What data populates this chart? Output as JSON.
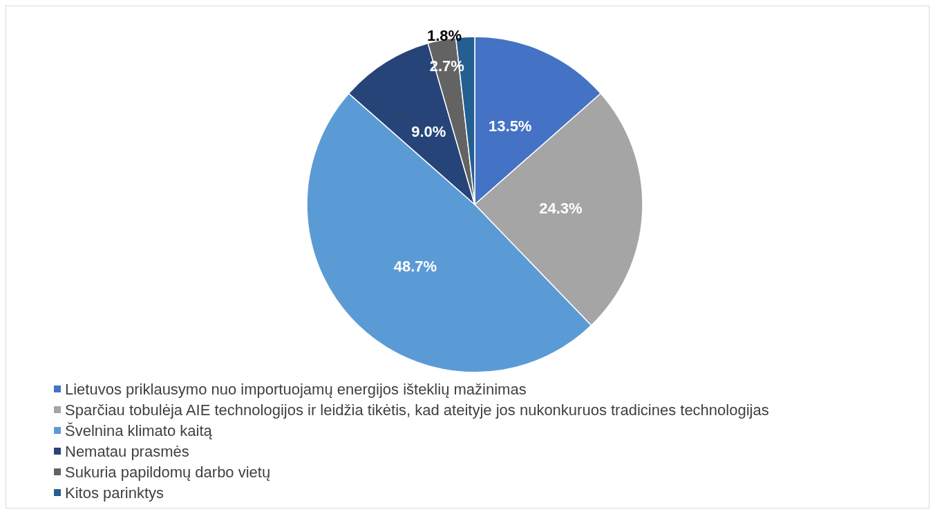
{
  "chart_data": {
    "type": "pie",
    "categories": [
      "Lietuvos priklausymo nuo importuojamų energijos išteklių mažinimas",
      "Sparčiau tobulėja AIE technologijos ir leidžia tikėtis, kad ateityje jos nukonkuruos tradicines technologijas",
      "Švelnina klimato kaitą",
      "Nematau prasmės",
      "Sukuria papildomų darbo vietų",
      "Kitos parinktys"
    ],
    "values": [
      13.5,
      24.3,
      48.7,
      9.0,
      2.7,
      1.8
    ],
    "value_labels": [
      "13.5%",
      "24.3%",
      "48.7%",
      "9.0%",
      "2.7%",
      "1.8%"
    ],
    "colors": [
      "#4472c4",
      "#a5a5a5",
      "#5b9bd5",
      "#264478",
      "#636363",
      "#255e91"
    ],
    "legend": "bottom left"
  }
}
